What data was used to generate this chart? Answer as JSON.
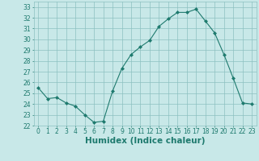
{
  "x": [
    0,
    1,
    2,
    3,
    4,
    5,
    6,
    7,
    8,
    9,
    10,
    11,
    12,
    13,
    14,
    15,
    16,
    17,
    18,
    19,
    20,
    21,
    22,
    23
  ],
  "y": [
    25.5,
    24.5,
    24.6,
    24.1,
    23.8,
    23.0,
    22.3,
    22.4,
    25.2,
    27.3,
    28.6,
    29.3,
    29.9,
    31.2,
    31.9,
    32.5,
    32.5,
    32.8,
    31.7,
    30.6,
    28.6,
    26.4,
    24.1,
    24.0
  ],
  "line_color": "#1e7a6e",
  "marker_color": "#1e7a6e",
  "bg_color": "#c8e8e8",
  "grid_color": "#8cc0c0",
  "xlabel": "Humidex (Indice chaleur)",
  "ylim": [
    22,
    33.5
  ],
  "yticks": [
    22,
    23,
    24,
    25,
    26,
    27,
    28,
    29,
    30,
    31,
    32,
    33
  ],
  "xticks": [
    0,
    1,
    2,
    3,
    4,
    5,
    6,
    7,
    8,
    9,
    10,
    11,
    12,
    13,
    14,
    15,
    16,
    17,
    18,
    19,
    20,
    21,
    22,
    23
  ],
  "tick_label_fontsize": 5.5,
  "xlabel_fontsize": 7.5,
  "xlabel_fontweight": "bold"
}
